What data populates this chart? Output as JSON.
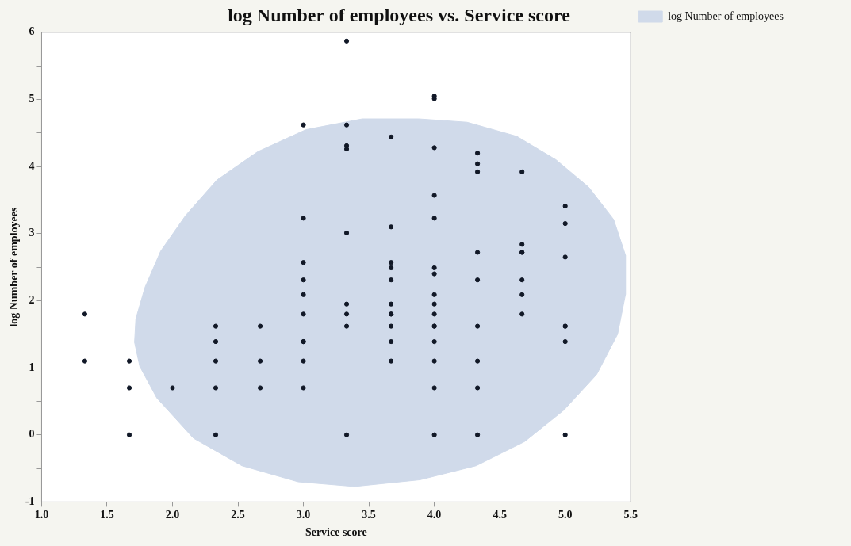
{
  "chart_data": {
    "type": "scatter",
    "title": "log Number of employees vs. Service score",
    "xlabel": "Service score",
    "ylabel": "log Number of employees",
    "xlim": [
      1,
      5.5
    ],
    "xticks": [
      {
        "value": 1,
        "label": "1.0"
      },
      {
        "value": 1.5,
        "label": "1.5"
      },
      {
        "value": 2,
        "label": "2.0"
      },
      {
        "value": 2.5,
        "label": "2.5"
      },
      {
        "value": 3,
        "label": "3.0"
      },
      {
        "value": 3.5,
        "label": "3.5"
      },
      {
        "value": 4,
        "label": "4.0"
      },
      {
        "value": 4.5,
        "label": "4.5"
      },
      {
        "value": 5,
        "label": "5.0"
      },
      {
        "value": 5.5,
        "label": "5.5"
      }
    ],
    "ylim": [
      -1,
      6
    ],
    "yticks": [
      -1,
      {
        "value": -0.5,
        "label": null
      },
      0,
      {
        "value": 0.5,
        "label": null
      },
      1,
      {
        "value": 1.5,
        "label": null
      },
      2,
      {
        "value": 2.5,
        "label": null
      },
      3,
      {
        "value": 3.5,
        "label": null
      },
      4,
      {
        "value": 4.5,
        "label": null
      },
      5,
      {
        "value": 5.5,
        "label": null
      },
      6
    ],
    "grid": false,
    "legend": "top right",
    "series": [
      {
        "type": "area",
        "name": "log Number of employees",
        "color": "#d0daea",
        "x": [
          1.71,
          1.72,
          1.79,
          1.91,
          2.1,
          2.34,
          2.65,
          3.02,
          3.45,
          3.88,
          4.25,
          4.63,
          4.93,
          5.18,
          5.37,
          5.46,
          5.46,
          5.4,
          5.24,
          4.99,
          4.69,
          4.32,
          3.89,
          3.39,
          2.96,
          2.53,
          2.16,
          1.88,
          1.75,
          1.71
        ],
        "values": [
          1.38,
          1.73,
          2.2,
          2.74,
          3.27,
          3.8,
          4.22,
          4.55,
          4.71,
          4.71,
          4.66,
          4.45,
          4.1,
          3.69,
          3.21,
          2.68,
          2.09,
          1.5,
          0.9,
          0.37,
          -0.1,
          -0.46,
          -0.67,
          -0.77,
          -0.7,
          -0.46,
          -0.05,
          0.55,
          1.02,
          1.38
        ]
      },
      {
        "color": "#111827",
        "marker": "circle",
        "x": [
          1.33,
          1.33,
          1.67,
          1.67,
          1.67,
          2.0,
          2.33,
          2.33,
          2.33,
          2.33,
          2.33,
          2.67,
          2.67,
          2.67,
          3.0,
          3.0,
          3.0,
          3.0,
          3.0,
          3.0,
          3.0,
          3.0,
          3.0,
          3.0,
          3.33,
          3.33,
          3.33,
          3.33,
          3.33,
          3.33,
          3.33,
          3.33,
          3.33,
          3.67,
          3.67,
          3.67,
          3.67,
          3.67,
          3.67,
          3.67,
          3.67,
          3.67,
          3.67,
          3.67,
          4.0,
          4.0,
          4.0,
          4.0,
          4.0,
          4.0,
          4.0,
          4.0,
          4.0,
          4.0,
          4.0,
          4.0,
          4.0,
          4.0,
          4.0,
          4.0,
          4.33,
          4.33,
          4.33,
          4.33,
          4.33,
          4.33,
          4.33,
          4.33,
          4.33,
          4.67,
          4.67,
          4.67,
          4.67,
          4.67,
          4.67,
          4.67,
          5.0,
          5.0,
          5.0,
          5.0,
          5.0,
          5.0,
          5.0
        ],
        "values": [
          1.8,
          1.1,
          1.1,
          0.7,
          0,
          0.7,
          1.62,
          1.39,
          1.1,
          0.7,
          0,
          1.62,
          1.1,
          0.7,
          4.62,
          3.23,
          2.57,
          2.31,
          2.09,
          1.8,
          1.39,
          1.1,
          0.7,
          1.39,
          5.87,
          4.62,
          4.31,
          4.26,
          3.01,
          1.95,
          1.8,
          1.62,
          0,
          4.44,
          3.1,
          2.57,
          2.49,
          2.31,
          1.95,
          1.8,
          1.62,
          1.39,
          1.1,
          1.8,
          5.05,
          5.01,
          4.28,
          3.57,
          3.23,
          2.49,
          2.4,
          2.09,
          1.95,
          1.8,
          1.62,
          1.39,
          1.1,
          0.7,
          0,
          1.62,
          4.2,
          4.04,
          3.92,
          2.72,
          2.31,
          1.62,
          1.1,
          0.7,
          0,
          3.92,
          2.84,
          2.72,
          2.31,
          2.09,
          1.8,
          2.72,
          3.41,
          3.15,
          2.65,
          1.62,
          1.39,
          0,
          1.62
        ]
      }
    ]
  }
}
